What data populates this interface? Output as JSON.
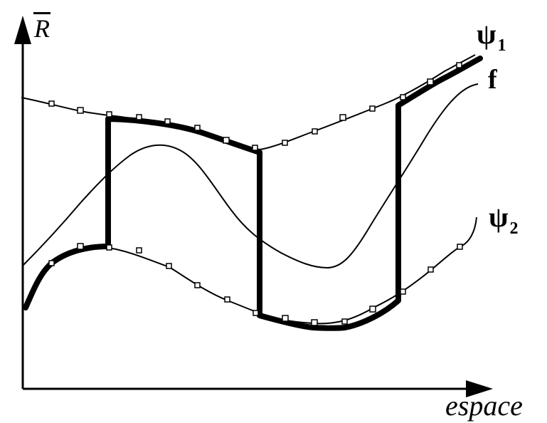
{
  "y_axis": {
    "symbol": "R"
  },
  "x_axis": {
    "label": "espace"
  },
  "curves": {
    "psi1": {
      "symbol": "ψ",
      "subscript": "1"
    },
    "psi2": {
      "symbol": "ψ",
      "subscript": "2"
    },
    "f": {
      "symbol": "f"
    }
  },
  "colors": {
    "stroke": "#000000",
    "background": "#ffffff"
  }
}
